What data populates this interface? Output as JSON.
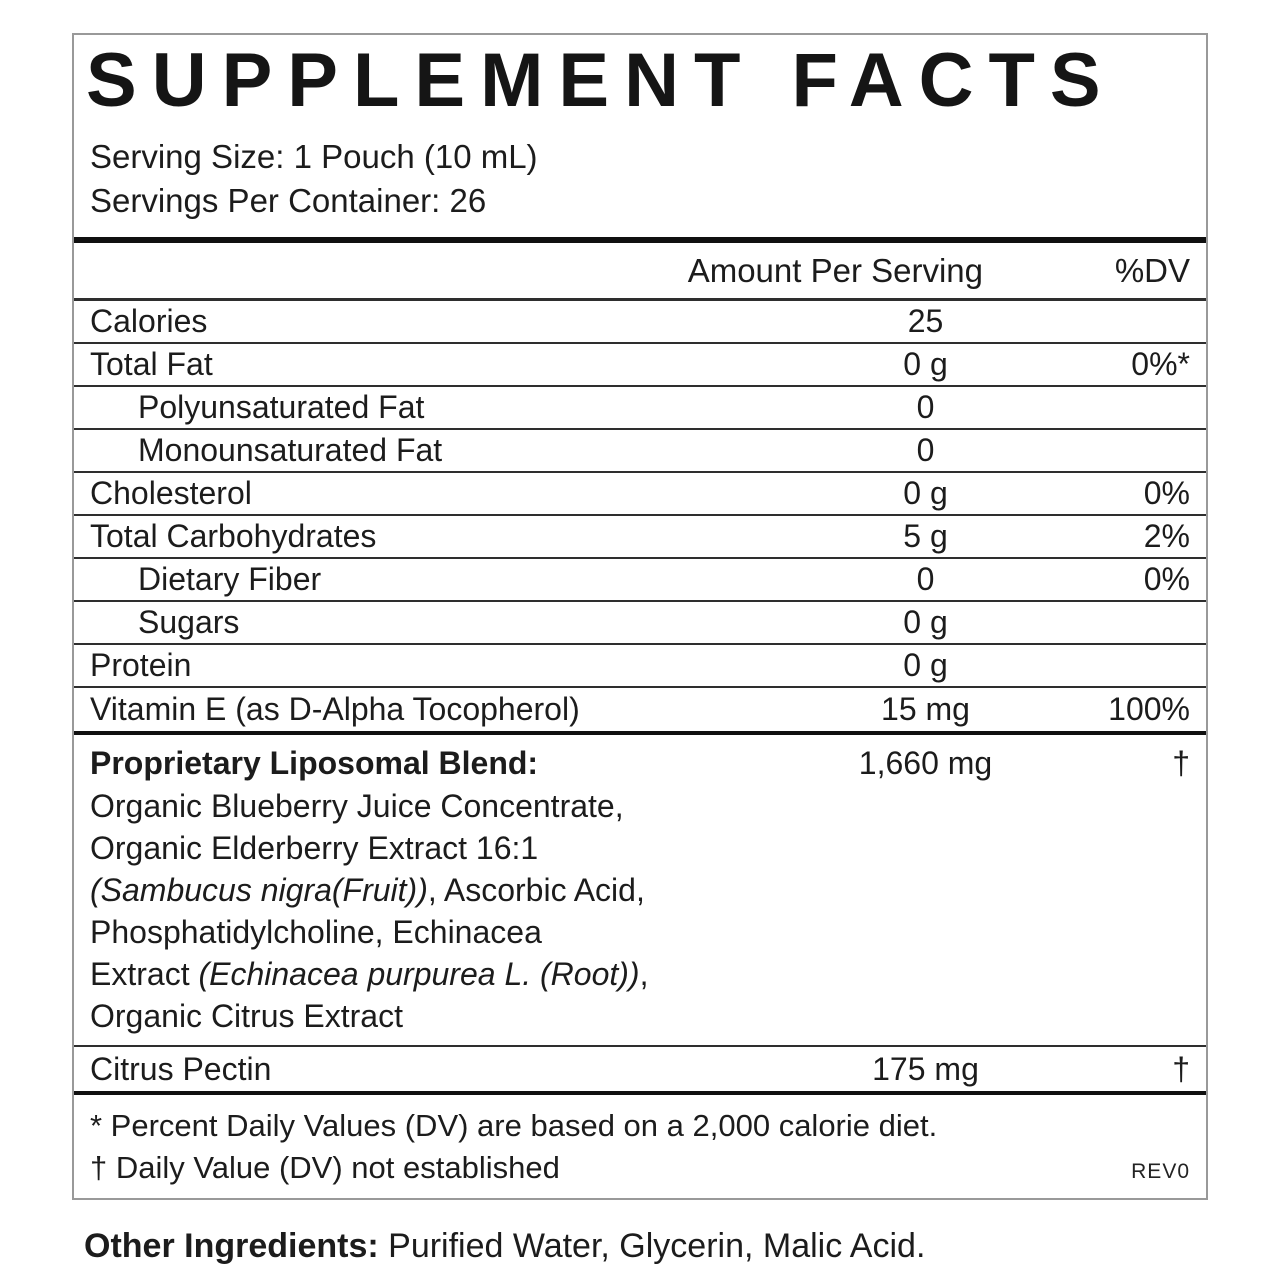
{
  "label": {
    "title": "SUPPLEMENT FACTS",
    "serving_size": "Serving Size: 1 Pouch (10 mL)",
    "servings_per_container": "Servings Per Container: 26",
    "columns": {
      "amount": "Amount Per Serving",
      "dv": "%DV"
    },
    "rows": [
      {
        "name": "Calories",
        "amount": "25",
        "dv": "",
        "indent": false
      },
      {
        "name": "Total Fat",
        "amount": "0 g",
        "dv": "0%*",
        "indent": false
      },
      {
        "name": "Polyunsaturated Fat",
        "amount": "0",
        "dv": "",
        "indent": true
      },
      {
        "name": "Monounsaturated Fat",
        "amount": "0",
        "dv": "",
        "indent": true
      },
      {
        "name": "Cholesterol",
        "amount": "0 g",
        "dv": "0%",
        "indent": false
      },
      {
        "name": "Total Carbohydrates",
        "amount": "5 g",
        "dv": "2%",
        "indent": false
      },
      {
        "name": "Dietary Fiber",
        "amount": "0",
        "dv": "0%",
        "indent": true
      },
      {
        "name": "Sugars",
        "amount": "0 g",
        "dv": "",
        "indent": true
      },
      {
        "name": "Protein",
        "amount": "0 g",
        "dv": "",
        "indent": false
      },
      {
        "name": "Vitamin E (as D-Alpha Tocopherol)",
        "amount": "15 mg",
        "dv": "100%",
        "indent": false
      }
    ],
    "blend": {
      "name": "Proprietary Liposomal Blend:",
      "amount": "1,660 mg",
      "dv": "†",
      "description_lines": [
        [
          {
            "text": "Organic Blueberry Juice Concentrate,",
            "italic": false
          }
        ],
        [
          {
            "text": "Organic Elderberry Extract 16:1",
            "italic": false
          }
        ],
        [
          {
            "text": "(Sambucus nigra(Fruit))",
            "italic": true
          },
          {
            "text": ", Ascorbic Acid,",
            "italic": false
          }
        ],
        [
          {
            "text": "Phosphatidylcholine, Echinacea",
            "italic": false
          }
        ],
        [
          {
            "text": "Extract ",
            "italic": false
          },
          {
            "text": "(Echinacea purpurea L. (Root))",
            "italic": true
          },
          {
            "text": ",",
            "italic": false
          }
        ],
        [
          {
            "text": "Organic Citrus Extract",
            "italic": false
          }
        ]
      ]
    },
    "extra_rows": [
      {
        "name": "Citrus Pectin",
        "amount": "175 mg",
        "dv": "†"
      }
    ],
    "footnotes": [
      "* Percent Daily Values (DV) are based on a 2,000 calorie diet.",
      "† Daily Value (DV) not established"
    ],
    "revision": "REV0",
    "other_ingredients": {
      "label": "Other Ingredients:",
      "text": " Purified Water, Glycerin, Malic Acid."
    },
    "colors": {
      "text": "#1c1c1c",
      "rule_line": "#2e2e2e",
      "thick_bar": "#101010",
      "outer_border": "#999999"
    }
  }
}
